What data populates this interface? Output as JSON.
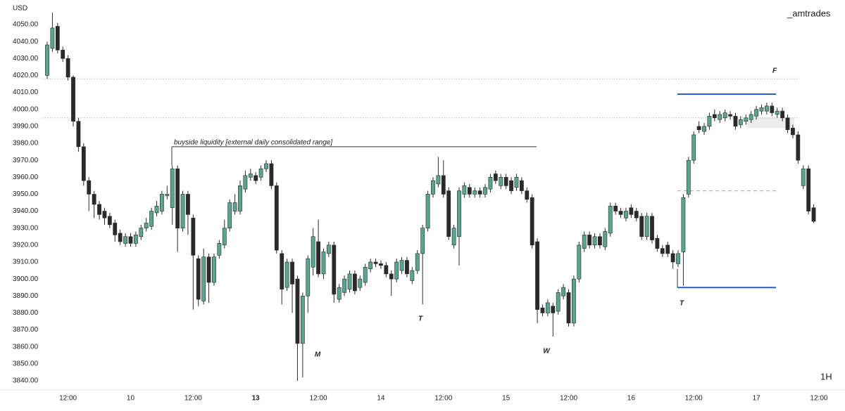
{
  "chart_data": {
    "type": "candlestick",
    "y_axis_label": "USD",
    "watermark": "_amtrades",
    "interval": "1H",
    "up_color": "#5aa590",
    "down_color": "#2a2a2a",
    "ylim": [
      3834.6,
      4064.5
    ],
    "yticks": [
      {
        "value": 3840,
        "label": "3840.00"
      },
      {
        "value": 3850,
        "label": "3850.00"
      },
      {
        "value": 3860,
        "label": "3860.00"
      },
      {
        "value": 3870,
        "label": "3870.00"
      },
      {
        "value": 3880,
        "label": "3880.00"
      },
      {
        "value": 3890,
        "label": "3890.00"
      },
      {
        "value": 3900,
        "label": "3900.00"
      },
      {
        "value": 3910,
        "label": "3910.00"
      },
      {
        "value": 3920,
        "label": "3920.00"
      },
      {
        "value": 3930,
        "label": "3930.00"
      },
      {
        "value": 3940,
        "label": "3940.00"
      },
      {
        "value": 3950,
        "label": "3950.00"
      },
      {
        "value": 3960,
        "label": "3960.00"
      },
      {
        "value": 3970,
        "label": "3970.00"
      },
      {
        "value": 3980,
        "label": "3980.00"
      },
      {
        "value": 3990,
        "label": "3990.00"
      },
      {
        "value": 4000,
        "label": "4000.00"
      },
      {
        "value": 4010,
        "label": "4010.00"
      },
      {
        "value": 4020,
        "label": "4020.00"
      },
      {
        "value": 4030,
        "label": "4030.00"
      },
      {
        "value": 4040,
        "label": "4040.00"
      },
      {
        "value": 4050,
        "label": "4050.00"
      }
    ],
    "categories": [
      null,
      null,
      null,
      null,
      "12:00",
      null,
      null,
      null,
      null,
      null,
      null,
      null,
      null,
      null,
      null,
      null,
      "10",
      null,
      null,
      null,
      null,
      null,
      null,
      null,
      null,
      null,
      null,
      null,
      "12:00",
      null,
      null,
      null,
      null,
      null,
      null,
      null,
      null,
      null,
      null,
      null,
      "13",
      null,
      null,
      null,
      null,
      null,
      null,
      null,
      null,
      null,
      null,
      null,
      "12:00",
      null,
      null,
      null,
      null,
      null,
      null,
      null,
      null,
      null,
      null,
      null,
      "14",
      null,
      null,
      null,
      null,
      null,
      null,
      null,
      null,
      null,
      null,
      null,
      "12:00",
      null,
      null,
      null,
      null,
      null,
      null,
      null,
      null,
      null,
      null,
      null,
      "15",
      null,
      null,
      null,
      null,
      null,
      null,
      null,
      null,
      null,
      null,
      null,
      "12:00",
      null,
      null,
      null,
      null,
      null,
      null,
      null,
      null,
      null,
      null,
      null,
      "16",
      null,
      null,
      null,
      null,
      null,
      null,
      null,
      null,
      null,
      null,
      null,
      "12:00",
      null,
      null,
      null,
      null,
      null,
      null,
      null,
      null,
      null,
      null,
      null,
      "17",
      null,
      null,
      null,
      null,
      null,
      null,
      null,
      null,
      null,
      null,
      null,
      "12:00"
    ],
    "open": [
      4020,
      4036,
      4049,
      4035,
      4030,
      4019,
      3993,
      3978,
      3958,
      3950,
      3944,
      3940,
      3937,
      3933,
      3927,
      3921,
      3925,
      3921,
      3925,
      3930,
      3931,
      3939,
      3940,
      3949,
      3942,
      3965,
      3930,
      3950,
      3936,
      3912,
      3887,
      3913,
      3898,
      3914,
      3920,
      3930,
      3940,
      3940,
      3953,
      3960,
      3961,
      3960,
      3965,
      3968,
      3955,
      3915,
      3895,
      3910,
      3900,
      3862,
      3890,
      3907,
      3922,
      3903,
      3915,
      3920,
      3888,
      3892,
      3894,
      3903,
      3895,
      3898,
      3906,
      3910,
      3909,
      3908,
      3903,
      3900,
      3905,
      3911,
      3899,
      3905,
      3915,
      3930,
      3950,
      3956,
      3961,
      3952,
      3920,
      3925,
      3950,
      3954,
      3950,
      3952,
      3950,
      3953,
      3962,
      3955,
      3960,
      3958,
      3954,
      3958,
      3952,
      3948,
      3922,
      3883,
      3880,
      3884,
      3881,
      3890,
      3892,
      3874,
      3900,
      3918,
      3926,
      3920,
      3925,
      3919,
      3927,
      3943,
      3940,
      3936,
      3942,
      3940,
      3937,
      3925,
      3937,
      3924,
      3918,
      3920,
      3915,
      3909,
      3916,
      3950,
      3970,
      3990,
      3987,
      3990,
      3997,
      3994,
      3995,
      3997,
      3996,
      3991,
      3993,
      3994,
      3996,
      3999,
      3999,
      4002,
      3997,
      3999,
      3995,
      3989,
      3985,
      3955,
      3965,
      3942,
      null
    ],
    "high": [
      4040,
      4057,
      4051,
      4037,
      4032,
      4020,
      3995,
      3980,
      3960,
      3952,
      3946,
      3942,
      3939,
      3935,
      3929,
      3927,
      3927,
      3928,
      3932,
      3936,
      3942,
      3946,
      3952,
      3955,
      3967,
      3967,
      3952,
      3952,
      3938,
      3914,
      3918,
      3915,
      3915,
      3923,
      3935,
      3947,
      3950,
      3958,
      3964,
      3965,
      3963,
      3967,
      3970,
      3970,
      3957,
      3917,
      3912,
      3912,
      3902,
      3892,
      3914,
      3930,
      3935,
      3918,
      3922,
      3922,
      3897,
      3902,
      3905,
      3905,
      3902,
      3909,
      3912,
      3912,
      3911,
      3910,
      3905,
      3912,
      3913,
      3913,
      3907,
      3917,
      3932,
      3952,
      3960,
      3972,
      3970,
      3954,
      3932,
      3954,
      3957,
      3956,
      3954,
      3954,
      3956,
      3962,
      3964,
      3962,
      3962,
      3960,
      3962,
      3960,
      3954,
      3950,
      3924,
      3885,
      3888,
      3886,
      3894,
      3897,
      3894,
      3902,
      3922,
      3928,
      3928,
      3927,
      3927,
      3930,
      3945,
      3945,
      3942,
      3942,
      3944,
      3942,
      3939,
      3939,
      3939,
      3926,
      3920,
      3922,
      3917,
      3917,
      3950,
      3972,
      3987,
      3993,
      3992,
      3998,
      4000,
      3999,
      4000,
      3999,
      3998,
      3996,
      3997,
      3999,
      4002,
      4003,
      4004,
      4004,
      4001,
      4001,
      3997,
      3991,
      3987,
      3967,
      3967,
      3944,
      null
    ],
    "low": [
      4018,
      4034,
      4033,
      4028,
      4017,
      3990,
      3975,
      3955,
      3940,
      3936,
      3935,
      3932,
      3930,
      3922,
      3920,
      3919,
      3919,
      3919,
      3923,
      3928,
      3929,
      3937,
      3938,
      3947,
      3932,
      3916,
      3928,
      3926,
      3882,
      3884,
      3885,
      3886,
      3896,
      3912,
      3918,
      3928,
      3938,
      3938,
      3951,
      3958,
      3956,
      3958,
      3963,
      3953,
      3915,
      3885,
      3893,
      3880,
      3840,
      3842,
      3880,
      3902,
      3901,
      3900,
      3913,
      3886,
      3886,
      3890,
      3892,
      3891,
      3893,
      3896,
      3904,
      3907,
      3906,
      3901,
      3890,
      3898,
      3903,
      3901,
      3897,
      3903,
      3885,
      3928,
      3948,
      3954,
      3948,
      3923,
      3918,
      3908,
      3948,
      3948,
      3948,
      3948,
      3948,
      3951,
      3956,
      3953,
      3953,
      3950,
      3952,
      3950,
      3945,
      3918,
      3874,
      3878,
      3878,
      3866,
      3879,
      3888,
      3872,
      3872,
      3898,
      3916,
      3918,
      3918,
      3918,
      3917,
      3925,
      3938,
      3936,
      3934,
      3936,
      3934,
      3923,
      3923,
      3921,
      3916,
      3913,
      3913,
      3906,
      3907,
      3896,
      3948,
      3968,
      3986,
      3985,
      3988,
      3993,
      3992,
      3993,
      3994,
      3988,
      3989,
      3991,
      3992,
      3994,
      3997,
      3997,
      3996,
      3995,
      3993,
      3986,
      3983,
      3968,
      3953,
      3938,
      3933,
      null
    ],
    "close": [
      4038,
      4048,
      4035,
      4030,
      4019,
      3993,
      3978,
      3958,
      3950,
      3944,
      3938,
      3936,
      3932,
      3926,
      3922,
      3925,
      3921,
      3926,
      3930,
      3933,
      3940,
      3943,
      3950,
      3950,
      3965,
      3930,
      3950,
      3938,
      3914,
      3888,
      3913,
      3898,
      3913,
      3921,
      3930,
      3945,
      3945,
      3955,
      3961,
      3962,
      3958,
      3965,
      3968,
      3955,
      3917,
      3894,
      3910,
      3897,
      3862,
      3890,
      3912,
      3925,
      3903,
      3916,
      3920,
      3891,
      3895,
      3900,
      3903,
      3893,
      3900,
      3907,
      3910,
      3909,
      3908,
      3903,
      3900,
      3910,
      3911,
      3903,
      3905,
      3915,
      3930,
      3950,
      3958,
      3961,
      3950,
      3925,
      3930,
      3952,
      3955,
      3950,
      3952,
      3950,
      3954,
      3960,
      3958,
      3960,
      3955,
      3952,
      3960,
      3952,
      3947,
      3920,
      3882,
      3880,
      3886,
      3880,
      3892,
      3895,
      3874,
      3900,
      3920,
      3926,
      3920,
      3925,
      3920,
      3928,
      3943,
      3940,
      3938,
      3940,
      3938,
      3936,
      3925,
      3937,
      3923,
      3918,
      3915,
      3915,
      3910,
      3915,
      3948,
      3970,
      3985,
      3988,
      3990,
      3996,
      3995,
      3997,
      3998,
      3996,
      3990,
      3994,
      3995,
      3997,
      4000,
      4001,
      4002,
      3998,
      3999,
      3995,
      3988,
      3985,
      3970,
      3965,
      3940,
      3934,
      null
    ],
    "levels": [
      {
        "value": 4018,
        "style": "dotted",
        "color": "#bbbbbb"
      },
      {
        "value": 3995,
        "style": "dotted",
        "color": "#bbbbbb"
      },
      {
        "value": 3978,
        "style": "solid",
        "color": "#333333"
      },
      {
        "value": 4009,
        "style": "solid",
        "color": "#2f5cc7"
      },
      {
        "value": 3895,
        "style": "solid",
        "color": "#2f5cc7"
      },
      {
        "value": 3952,
        "style": "dashed",
        "color": "#aaaaaa"
      }
    ],
    "zone": [
      3989,
      3995
    ],
    "annotations": [
      {
        "text": "buyside liquidity [external daily consolidated range]",
        "color": "#222222"
      },
      {
        "text": "F",
        "color": "#8b1c2c"
      },
      {
        "text": "T",
        "color": "#3a8a5a"
      },
      {
        "text": "T",
        "color": "#999999"
      },
      {
        "text": "M",
        "color": "#999999"
      },
      {
        "text": "W",
        "color": "#999999"
      }
    ]
  }
}
